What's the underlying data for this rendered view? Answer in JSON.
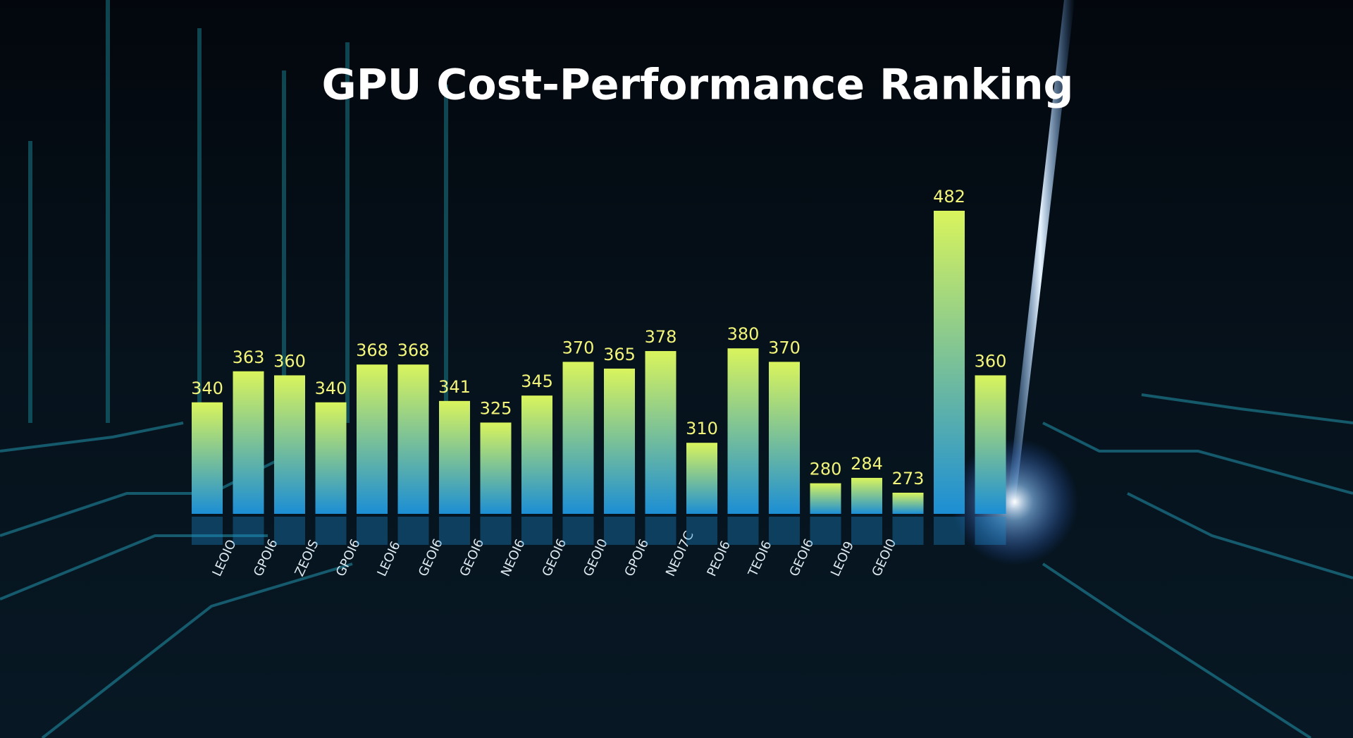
{
  "chart_data": {
    "type": "bar",
    "title": "GPU Cost-Performance Ranking",
    "categories": [
      "LEOIO",
      "GPOI6",
      "ZEOIS",
      "GPOI6",
      "LEOI6",
      "GEOI6",
      "GEOI6",
      "NEOI6",
      "GEOI6",
      "GEOI0",
      "GPOI6",
      "NEOI7C",
      "PEOI6",
      "TEOI6",
      "GEOI6",
      "LEOI9",
      "GEOI0",
      null,
      null,
      null
    ],
    "values": [
      340,
      363,
      360,
      340,
      368,
      368,
      341,
      325,
      345,
      370,
      365,
      378,
      310,
      380,
      370,
      280,
      284,
      273,
      482,
      360
    ],
    "color": "#d9f45c",
    "color_bottom": "#1c8ed4",
    "label_color": "#f2f57a"
  }
}
